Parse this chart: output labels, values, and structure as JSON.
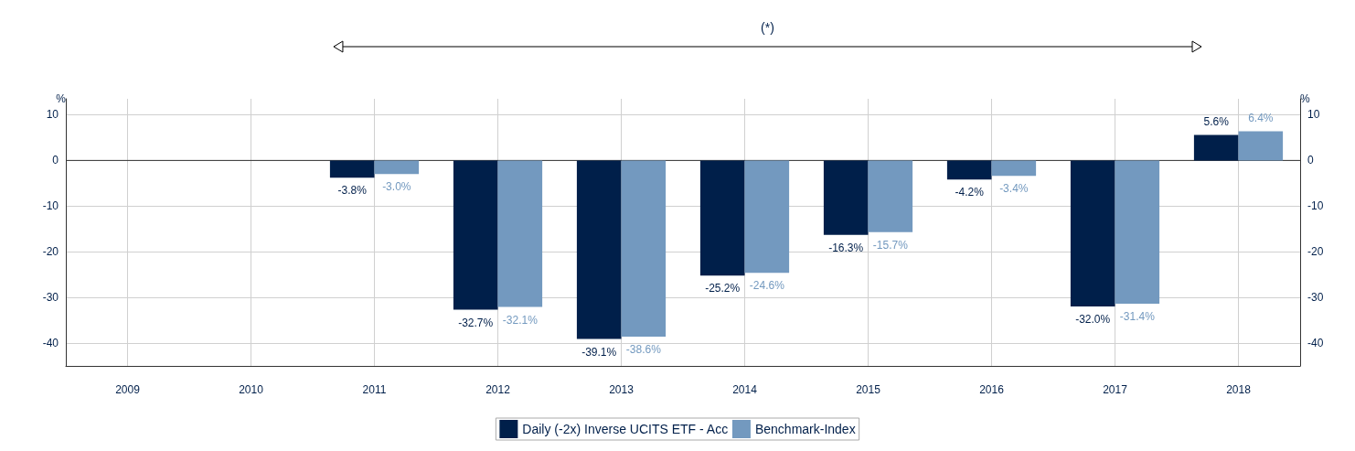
{
  "chart_data": {
    "type": "bar",
    "categories": [
      "2009",
      "2010",
      "2011",
      "2012",
      "2013",
      "2014",
      "2015",
      "2016",
      "2017",
      "2018"
    ],
    "series": [
      {
        "name": "Daily (-2x) Inverse UCITS ETF - Acc",
        "color": "#001f4a",
        "values": [
          null,
          null,
          -3.8,
          -32.7,
          -39.1,
          -25.2,
          -16.3,
          -4.2,
          -32.0,
          5.6
        ],
        "value_labels": [
          null,
          null,
          "-3.8%",
          "-32.7%",
          "-39.1%",
          "-25.2%",
          "-16.3%",
          "-4.2%",
          "-32.0%",
          "5.6%"
        ]
      },
      {
        "name": "Benchmark-Index",
        "color": "#7399bf",
        "values": [
          null,
          null,
          -3.0,
          -32.1,
          -38.6,
          -24.6,
          -15.7,
          -3.4,
          -31.4,
          6.4
        ],
        "value_labels": [
          null,
          null,
          "-3.0%",
          "-32.1%",
          "-38.6%",
          "-24.6%",
          "-15.7%",
          "-3.4%",
          "-31.4%",
          "6.4%"
        ]
      }
    ],
    "ylabel": "%",
    "y2label": "%",
    "ylim": [
      -45,
      13.5
    ],
    "yticks": [
      -40,
      -30,
      -20,
      -10,
      0,
      10
    ],
    "y2lim": [
      -45,
      13.5
    ],
    "y2ticks": [
      -40,
      -30,
      -20,
      -10,
      0,
      10
    ],
    "annotations": [
      "(*)"
    ],
    "grid": true,
    "legend": "bottom"
  }
}
